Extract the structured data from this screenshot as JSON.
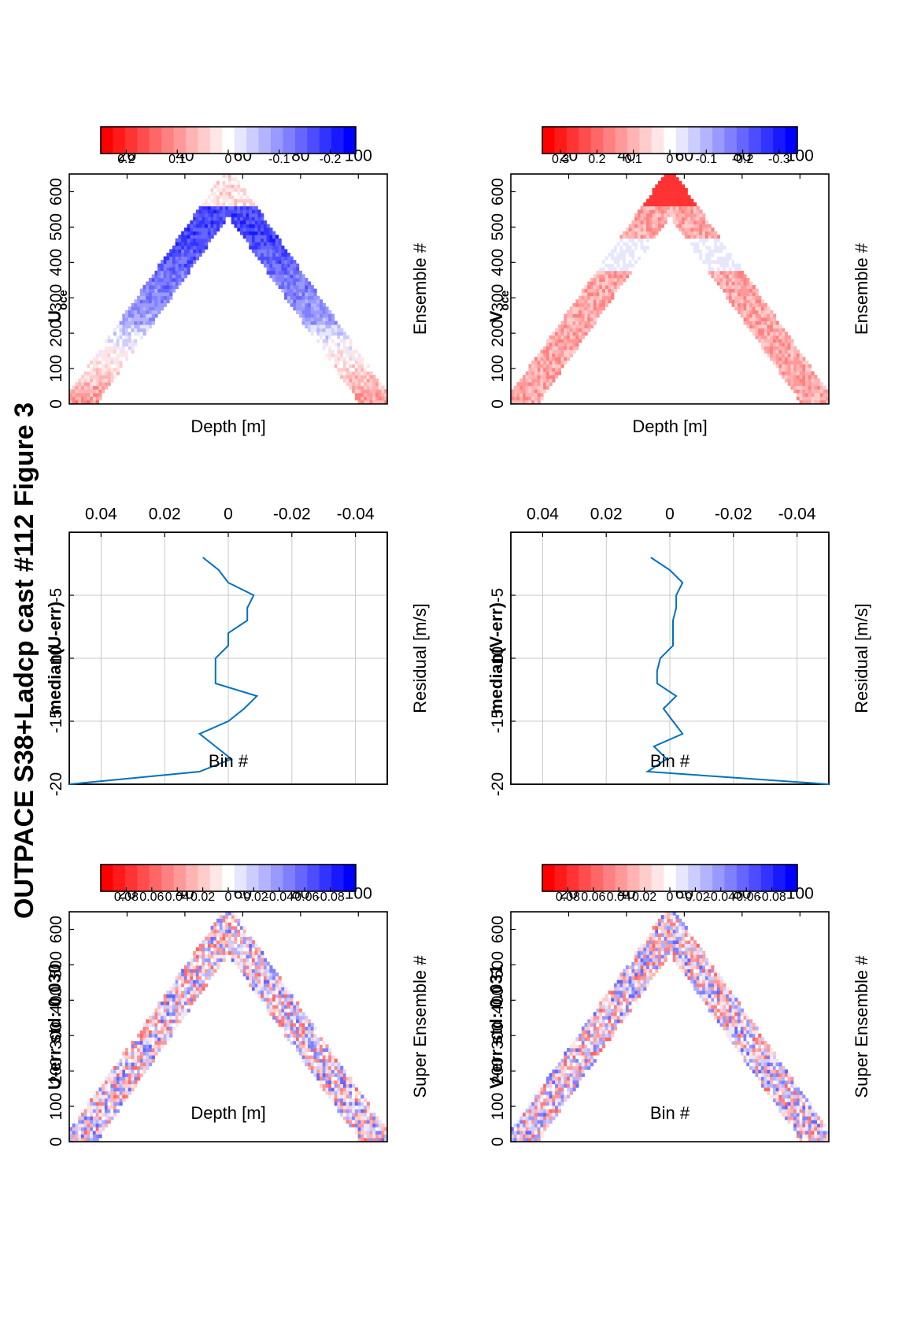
{
  "figure_title": "OUTPACE S38+Ladcp cast #112  Figure 3",
  "chart_data": [
    {
      "id": "u_err",
      "type": "heatmap",
      "title": "U-err std: 0.030",
      "xlabel": "Super Ensemble #",
      "ylabel": "Depth [m]",
      "xlim": [
        0,
        110
      ],
      "ylim": [
        0,
        650
      ],
      "xticks": [
        "20",
        "40",
        "60",
        "80",
        "100"
      ],
      "yticks": [
        "0",
        "100",
        "200",
        "300",
        "400",
        "500",
        "600"
      ],
      "colorbar": {
        "range": [
          -0.1,
          0.1
        ],
        "colormap": "red-white-blue",
        "ticks": [
          "0.08",
          "0.06",
          "0.04",
          "0.02",
          "0",
          "-0.02",
          "-0.04",
          "-0.06",
          "-0.08"
        ]
      },
      "pattern": {
        "shape": "V",
        "x_bottom": 55,
        "max_depth": 640,
        "seed": 11,
        "amp": 0.06
      }
    },
    {
      "id": "median_u_err",
      "type": "line",
      "title": "median(U-err)",
      "xlabel": "Residual [m/s]",
      "ylabel": "Bin #",
      "xlim": [
        -0.05,
        0.05
      ],
      "ylim": [
        -20,
        0
      ],
      "xticks": [
        "-0.04",
        "-0.02",
        "0",
        "0.02",
        "0.04"
      ],
      "yticks": [
        "-5",
        "-10",
        "-15",
        "-20"
      ],
      "grid": true,
      "series": [
        {
          "bin": [
            -2,
            -3,
            -4,
            -5,
            -6,
            -7,
            -8,
            -9,
            -10,
            -11,
            -12,
            -13,
            -14,
            -15,
            -16,
            -17,
            -18,
            -19,
            -20
          ],
          "x": [
            0.008,
            0.003,
            0.0,
            -0.008,
            -0.006,
            -0.006,
            0.0,
            0.0,
            0.004,
            0.004,
            0.004,
            -0.009,
            -0.005,
            0.0,
            0.009,
            0.004,
            -0.001,
            0.009,
            0.05
          ],
          "color": "#0072bd"
        }
      ]
    },
    {
      "id": "u_oce",
      "type": "heatmap",
      "title": "U",
      "title_subscript": "oce",
      "xlabel": "Ensemble #",
      "ylabel": "Depth [m]",
      "xlim": [
        0,
        110
      ],
      "ylim": [
        0,
        650
      ],
      "xticks": [
        "20",
        "40",
        "60",
        "80",
        "100"
      ],
      "yticks": [
        "0",
        "100",
        "200",
        "300",
        "400",
        "500",
        "600"
      ],
      "colorbar": {
        "range": [
          -0.25,
          0.25
        ],
        "colormap": "red-white-blue",
        "ticks": [
          "0.2",
          "0.1",
          "0",
          "-0.1",
          "-0.2"
        ]
      },
      "pattern": {
        "shape": "V",
        "x_bottom": 55,
        "max_depth": 640,
        "seed": 23,
        "field": "u"
      }
    },
    {
      "id": "v_err",
      "type": "heatmap",
      "title": "V-err std: 0.031",
      "xlabel": "Super Ensemble #",
      "ylabel": "Bin #",
      "xlim": [
        0,
        110
      ],
      "ylim": [
        0,
        650
      ],
      "xticks": [
        "20",
        "40",
        "60",
        "80",
        "100"
      ],
      "yticks": [
        "0",
        "100",
        "200",
        "300",
        "400",
        "500",
        "600"
      ],
      "colorbar": {
        "range": [
          -0.1,
          0.1
        ],
        "colormap": "red-white-blue",
        "ticks": [
          "0.08",
          "0.06",
          "0.04",
          "0.02",
          "0",
          "-0.02",
          "-0.04",
          "-0.06",
          "-0.08"
        ]
      },
      "pattern": {
        "shape": "V",
        "x_bottom": 55,
        "max_depth": 640,
        "seed": 37,
        "amp": 0.06
      }
    },
    {
      "id": "median_v_err",
      "type": "line",
      "title": "median(V-err)",
      "xlabel": "Residual [m/s]",
      "ylabel": "Bin #",
      "xlim": [
        -0.05,
        0.05
      ],
      "ylim": [
        -20,
        0
      ],
      "xticks": [
        "-0.04",
        "-0.02",
        "0",
        "0.02",
        "0.04"
      ],
      "yticks": [
        "-5",
        "-10",
        "-15",
        "-20"
      ],
      "grid": true,
      "series": [
        {
          "bin": [
            -2,
            -3,
            -4,
            -5,
            -6,
            -7,
            -8,
            -9,
            -10,
            -11,
            -12,
            -13,
            -14,
            -15,
            -16,
            -17,
            -18,
            -19,
            -20
          ],
          "x": [
            0.006,
            0.0,
            -0.004,
            -0.002,
            -0.002,
            -0.001,
            -0.001,
            -0.001,
            0.003,
            0.004,
            0.004,
            -0.002,
            0.002,
            -0.001,
            -0.004,
            0.005,
            0.001,
            0.007,
            -0.05
          ],
          "color": "#0072bd"
        }
      ]
    },
    {
      "id": "v_oce",
      "type": "heatmap",
      "title": "V",
      "title_subscript": "oce",
      "xlabel": "Ensemble #",
      "ylabel": "Depth [m]",
      "xlim": [
        0,
        110
      ],
      "ylim": [
        0,
        650
      ],
      "xticks": [
        "20",
        "40",
        "60",
        "80",
        "100"
      ],
      "yticks": [
        "0",
        "100",
        "200",
        "300",
        "400",
        "500",
        "600"
      ],
      "colorbar": {
        "range": [
          -0.35,
          0.35
        ],
        "colormap": "red-white-blue",
        "ticks": [
          "0.3",
          "0.2",
          "0.1",
          "0",
          "-0.1",
          "-0.2",
          "-0.3"
        ]
      },
      "pattern": {
        "shape": "V",
        "x_bottom": 55,
        "max_depth": 640,
        "seed": 51,
        "field": "v"
      }
    }
  ]
}
